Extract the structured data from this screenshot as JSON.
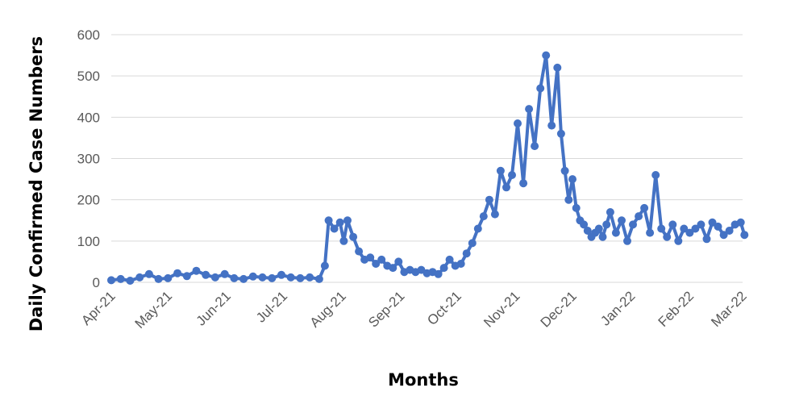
{
  "chart_data": {
    "type": "line",
    "title": "",
    "xlabel": "Months",
    "ylabel": "Daily Confirmed Case Numbers",
    "ylim": [
      0,
      600
    ],
    "yticks": [
      0,
      100,
      200,
      300,
      400,
      500,
      600
    ],
    "x_tick_labels": [
      "Apr-21",
      "May-21",
      "Jun-21",
      "Jul-21",
      "Aug-21",
      "Sep-21",
      "Oct-21",
      "Nov-21",
      "Dec-21",
      "Jan-22",
      "Feb-22",
      "Mar-22"
    ],
    "grid": "horizontal",
    "legend": "none",
    "line_color": "#4472c4",
    "series": [
      {
        "name": "",
        "x": [
          "2021-04-01",
          "2021-04-06",
          "2021-04-11",
          "2021-04-16",
          "2021-04-21",
          "2021-04-26",
          "2021-05-01",
          "2021-05-06",
          "2021-05-11",
          "2021-05-16",
          "2021-05-21",
          "2021-05-26",
          "2021-05-31",
          "2021-06-05",
          "2021-06-10",
          "2021-06-15",
          "2021-06-20",
          "2021-06-25",
          "2021-06-30",
          "2021-07-05",
          "2021-07-10",
          "2021-07-15",
          "2021-07-20",
          "2021-07-23",
          "2021-07-25",
          "2021-07-28",
          "2021-07-31",
          "2021-08-02",
          "2021-08-04",
          "2021-08-07",
          "2021-08-10",
          "2021-08-13",
          "2021-08-16",
          "2021-08-19",
          "2021-08-22",
          "2021-08-25",
          "2021-08-28",
          "2021-08-31",
          "2021-09-03",
          "2021-09-06",
          "2021-09-09",
          "2021-09-12",
          "2021-09-15",
          "2021-09-18",
          "2021-09-21",
          "2021-09-24",
          "2021-09-27",
          "2021-09-30",
          "2021-10-03",
          "2021-10-06",
          "2021-10-09",
          "2021-10-12",
          "2021-10-15",
          "2021-10-18",
          "2021-10-21",
          "2021-10-24",
          "2021-10-27",
          "2021-10-30",
          "2021-11-02",
          "2021-11-05",
          "2021-11-08",
          "2021-11-11",
          "2021-11-14",
          "2021-11-17",
          "2021-11-20",
          "2021-11-23",
          "2021-11-25",
          "2021-11-27",
          "2021-11-29",
          "2021-12-01",
          "2021-12-03",
          "2021-12-05",
          "2021-12-07",
          "2021-12-09",
          "2021-12-11",
          "2021-12-13",
          "2021-12-15",
          "2021-12-17",
          "2021-12-19",
          "2021-12-21",
          "2021-12-24",
          "2021-12-27",
          "2021-12-30",
          "2022-01-02",
          "2022-01-05",
          "2022-01-08",
          "2022-01-11",
          "2022-01-14",
          "2022-01-17",
          "2022-01-20",
          "2022-01-23",
          "2022-01-26",
          "2022-01-29",
          "2022-02-01",
          "2022-02-04",
          "2022-02-07",
          "2022-02-10",
          "2022-02-13",
          "2022-02-16",
          "2022-02-19",
          "2022-02-22",
          "2022-02-25",
          "2022-02-28",
          "2022-03-02"
        ],
        "y": [
          5,
          8,
          4,
          12,
          20,
          8,
          10,
          22,
          15,
          28,
          18,
          12,
          20,
          10,
          8,
          14,
          12,
          10,
          18,
          12,
          10,
          12,
          8,
          40,
          150,
          130,
          145,
          100,
          150,
          110,
          75,
          55,
          60,
          45,
          55,
          40,
          35,
          50,
          25,
          30,
          25,
          30,
          22,
          25,
          20,
          35,
          55,
          40,
          45,
          70,
          95,
          130,
          160,
          200,
          165,
          270,
          230,
          260,
          385,
          240,
          420,
          330,
          470,
          550,
          380,
          520,
          360,
          270,
          200,
          250,
          180,
          150,
          140,
          125,
          110,
          120,
          130,
          110,
          140,
          170,
          120,
          150,
          100,
          140,
          160,
          180,
          120,
          260,
          130,
          110,
          140,
          100,
          130,
          120,
          130,
          140,
          105,
          145,
          135,
          115,
          125,
          140,
          145,
          115
        ]
      }
    ]
  }
}
